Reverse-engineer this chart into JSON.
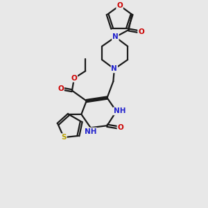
{
  "bg_color": "#e8e8e8",
  "bond_color": "#1a1a1a",
  "N_color": "#2020cc",
  "O_color": "#cc0000",
  "S_color": "#b8a000",
  "line_width": 1.6,
  "font_size": 7.5,
  "fig_size": [
    3.0,
    3.0
  ],
  "dpi": 100,
  "xlim": [
    0,
    10
  ],
  "ylim": [
    0,
    10
  ]
}
